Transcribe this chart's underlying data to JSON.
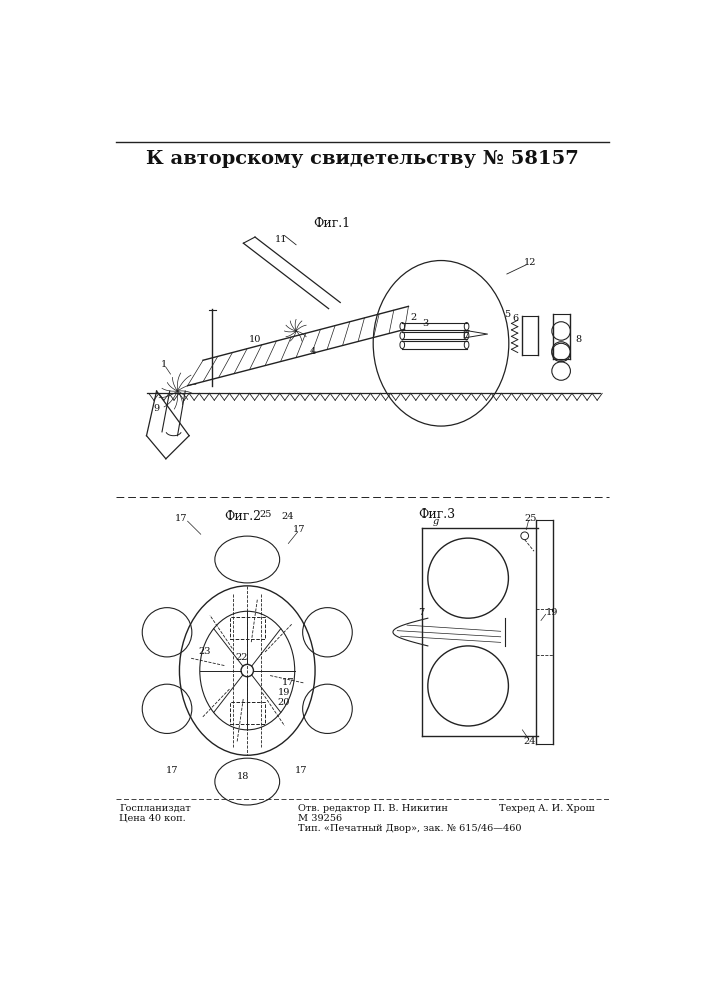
{
  "title": "К авторскому свидетельству № 58157",
  "background_color": "#ffffff",
  "fig1_label": "Фиг.1",
  "fig2_label": "Фиг.2",
  "fig3_label": "Фиг.3",
  "footer_left_line1": "Госпланиздат",
  "footer_left_line2": "Цена 40 коп.",
  "footer_mid_line1": "Отв. редактор П. В. Никитин",
  "footer_mid_line2": "М 39256",
  "footer_mid_line3": "Тип. «Печатный Двор», зак. № 615/46—460",
  "footer_right_line1": "Техред А. И. Хрош",
  "line_color": "#222222",
  "text_color": "#111111"
}
